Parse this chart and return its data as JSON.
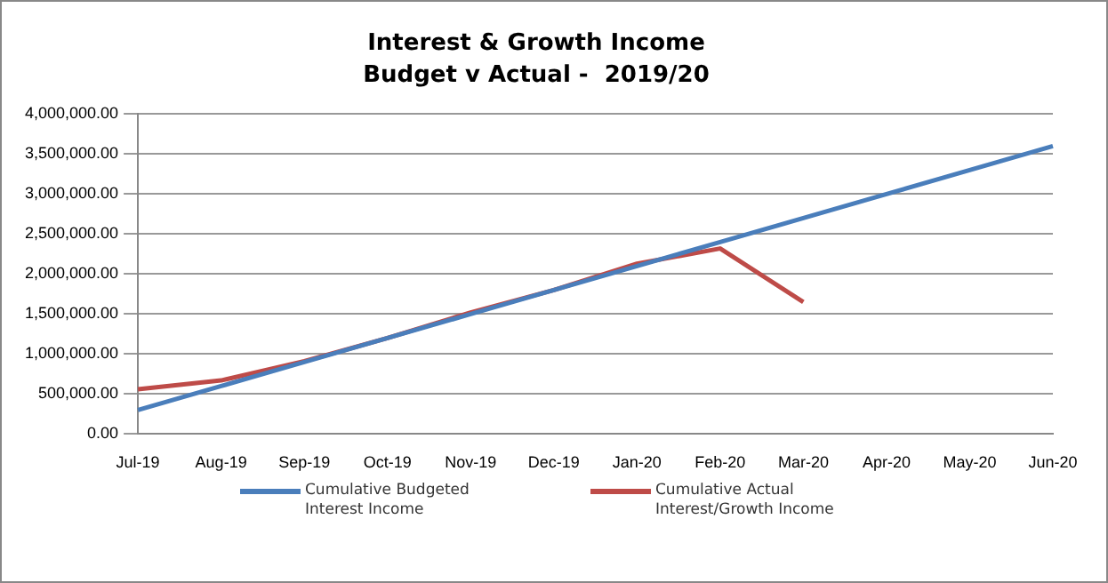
{
  "chart_data": {
    "type": "line",
    "title": "Interest & Growth Income",
    "subtitle": "Budget v Actual -  2019/20",
    "categories": [
      "Jul-19",
      "Aug-19",
      "Sep-19",
      "Oct-19",
      "Nov-19",
      "Dec-19",
      "Jan-20",
      "Feb-20",
      "Mar-20",
      "Apr-20",
      "May-20",
      "Jun-20"
    ],
    "series": [
      {
        "name": "Cumulative Budgeted Interest Income",
        "color": "#4a7ebb",
        "values": [
          300000,
          600000,
          900000,
          1200000,
          1500000,
          1800000,
          2100000,
          2400000,
          2700000,
          3000000,
          3300000,
          3600000
        ]
      },
      {
        "name": "Cumulative Actual Interest/Growth Income",
        "color": "#be4b48",
        "values": [
          560000,
          670000,
          910000,
          1200000,
          1520000,
          1800000,
          2130000,
          2320000,
          1650000,
          null,
          null,
          null
        ]
      }
    ],
    "ylim": [
      0,
      4000000
    ],
    "yticks": [
      {
        "value": 0,
        "label": "0.00"
      },
      {
        "value": 500000,
        "label": "500,000.00"
      },
      {
        "value": 1000000,
        "label": "1,000,000.00"
      },
      {
        "value": 1500000,
        "label": "1,500,000.00"
      },
      {
        "value": 2000000,
        "label": "2,000,000.00"
      },
      {
        "value": 2500000,
        "label": "2,500,000.00"
      },
      {
        "value": 3000000,
        "label": "3,000,000.00"
      },
      {
        "value": 3500000,
        "label": "3,500,000.00"
      },
      {
        "value": 4000000,
        "label": "4,000,000.00"
      }
    ],
    "grid": "y",
    "legend": "bottom",
    "marker": "none",
    "line_style": "solid"
  }
}
